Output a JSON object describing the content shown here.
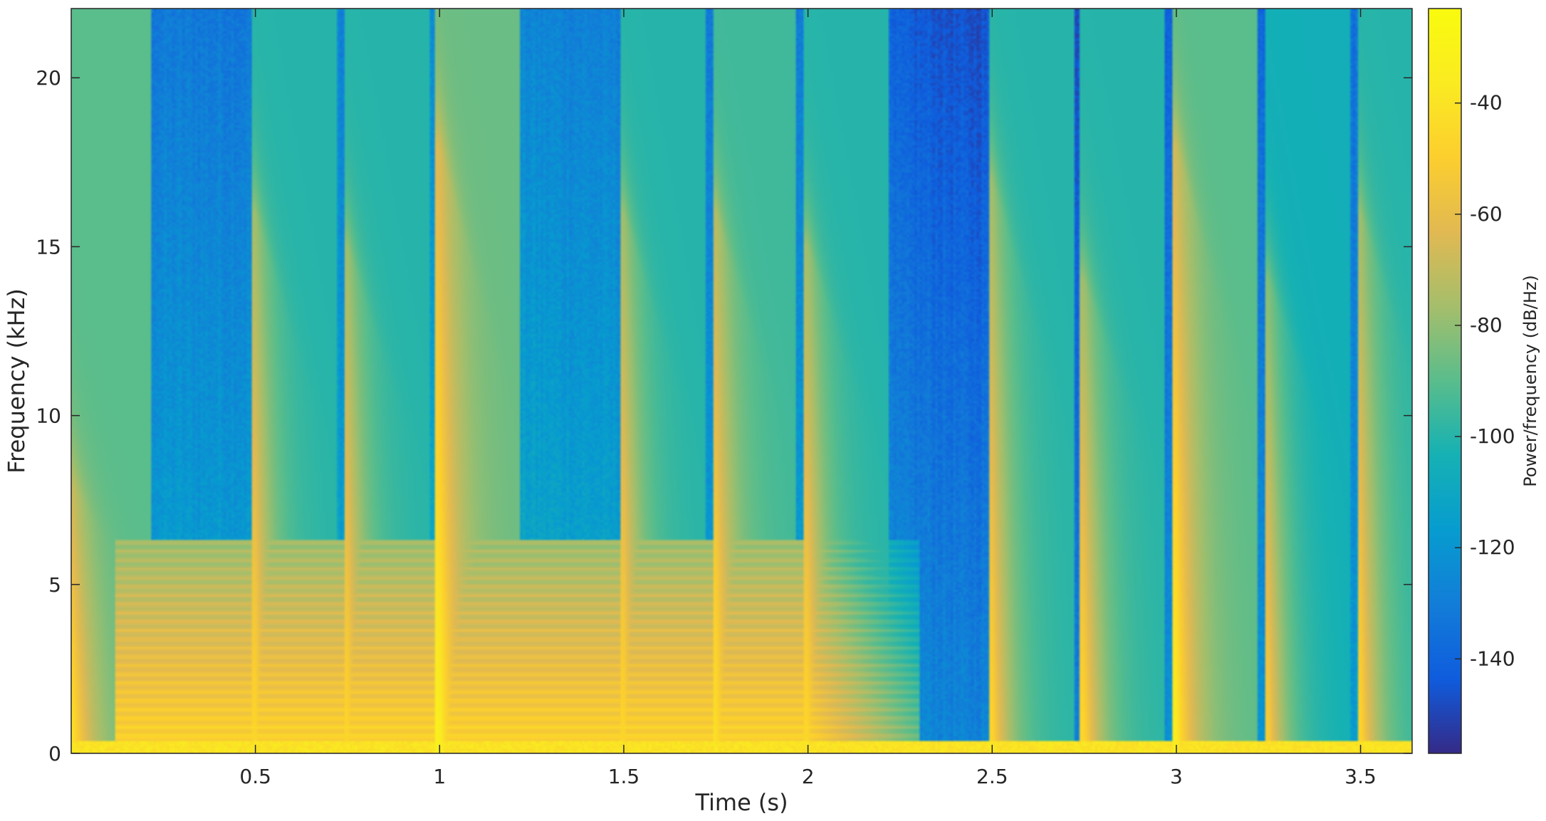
{
  "chart_data": {
    "type": "heatmap",
    "title": "",
    "xlabel": "Time (s)",
    "ylabel": "Frequency (kHz)",
    "xlim": [
      0,
      3.64
    ],
    "ylim": [
      0,
      22.05
    ],
    "x_ticks": [
      0.5,
      1,
      1.5,
      2,
      2.5,
      3,
      3.5
    ],
    "x_tick_labels": [
      "0.5",
      "1",
      "1.5",
      "2",
      "2.5",
      "3",
      "3.5"
    ],
    "y_ticks": [
      0,
      5,
      10,
      15,
      20
    ],
    "y_tick_labels": [
      "0",
      "5",
      "10",
      "15",
      "20"
    ],
    "colorbar": {
      "label": "Power/frequency (dB/Hz)",
      "range": [
        -157,
        -23
      ],
      "ticks": [
        -140,
        -120,
        -100,
        -80,
        -60,
        -40
      ],
      "tick_labels": [
        "-140",
        "-120",
        "-100",
        "-80",
        "-60",
        "-40"
      ],
      "colormap": "parula"
    },
    "noise_floor_db": [
      {
        "t": 0.0,
        "db": -102
      },
      {
        "t": 0.1,
        "db": -112
      },
      {
        "t": 0.5,
        "db": -112
      },
      {
        "t": 1.0,
        "db": -104
      },
      {
        "t": 1.5,
        "db": -110
      },
      {
        "t": 2.0,
        "db": -112
      },
      {
        "t": 2.2,
        "db": -122
      },
      {
        "t": 2.45,
        "db": -128
      },
      {
        "t": 2.55,
        "db": -122
      },
      {
        "t": 2.75,
        "db": -128
      },
      {
        "t": 3.0,
        "db": -120
      },
      {
        "t": 3.25,
        "db": -118
      },
      {
        "t": 3.5,
        "db": -115
      },
      {
        "t": 3.64,
        "db": -110
      }
    ],
    "onsets": [
      {
        "t": 0.0,
        "peak_db": -45,
        "top_khz": 8
      },
      {
        "t": 0.5,
        "peak_db": -55,
        "top_khz": 16
      },
      {
        "t": 0.75,
        "peak_db": -55,
        "top_khz": 15
      },
      {
        "t": 1.0,
        "peak_db": -42,
        "top_khz": 18
      },
      {
        "t": 1.5,
        "peak_db": -55,
        "top_khz": 16
      },
      {
        "t": 1.75,
        "peak_db": -50,
        "top_khz": 16
      },
      {
        "t": 2.0,
        "peak_db": -55,
        "top_khz": 15
      },
      {
        "t": 2.5,
        "peak_db": -55,
        "top_khz": 17
      },
      {
        "t": 2.75,
        "peak_db": -55,
        "top_khz": 14
      },
      {
        "t": 3.0,
        "peak_db": -45,
        "top_khz": 18
      },
      {
        "t": 3.25,
        "peak_db": -60,
        "top_khz": 14
      },
      {
        "t": 3.5,
        "peak_db": -55,
        "top_khz": 16
      }
    ],
    "harmonic_region": {
      "t_start": 0.12,
      "t_end": 2.3,
      "max_khz": 6.3,
      "peak_db": -50
    },
    "low_freq_band": {
      "max_khz": 0.4,
      "peak_db": -35
    },
    "colors": {
      "axis": "#262626",
      "background": "#ffffff"
    }
  }
}
